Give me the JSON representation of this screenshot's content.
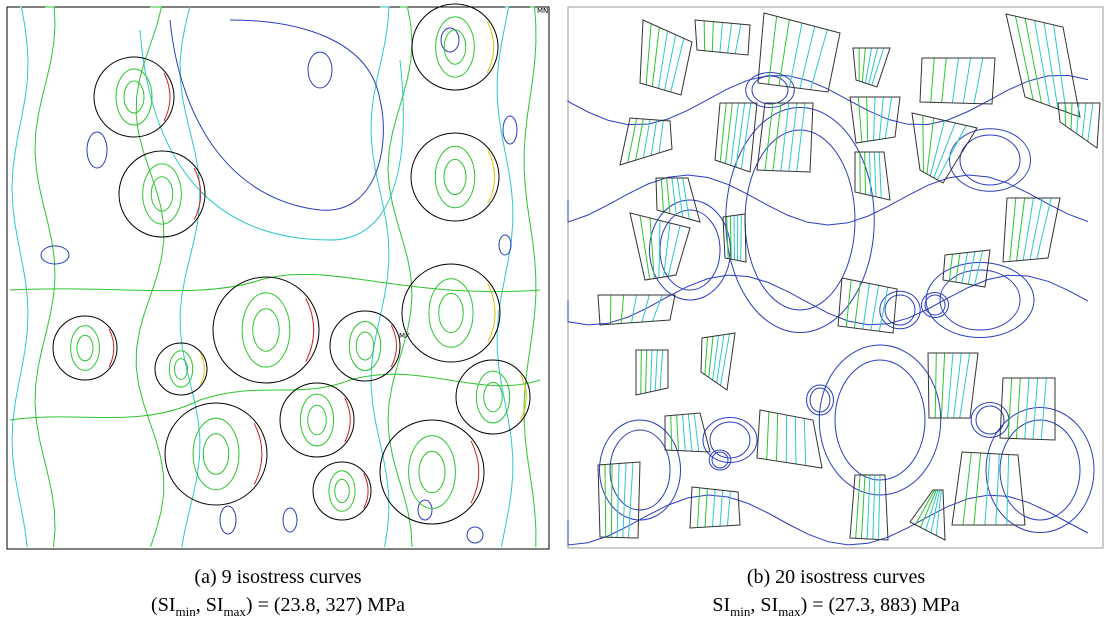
{
  "panels": [
    {
      "plot_labels": [
        "MN",
        "MX"
      ],
      "caption_line1": "(a) 9 isostress curves",
      "caption_line2": {
        "open": "(SI",
        "sub1": "min",
        "mid": ", SI",
        "sub2": "max",
        "close": ") = (23.8, 327) MPa"
      }
    },
    {
      "caption_line1": "(b) 20 isostress curves",
      "caption_line2": {
        "open": "SI",
        "sub1": "min",
        "mid": ", SI",
        "sub2": "max",
        "close": ") = (27.3, 883) MPa"
      }
    }
  ]
}
